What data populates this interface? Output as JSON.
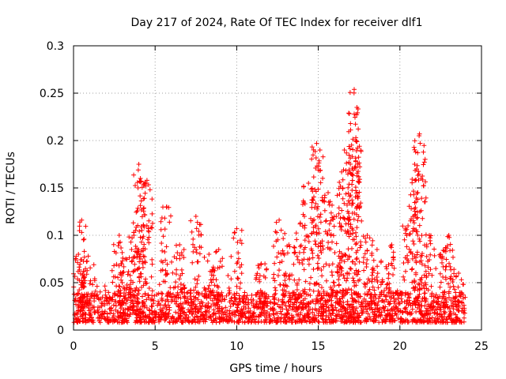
{
  "chart_data": {
    "type": "scatter",
    "title": "Day 217 of 2024, Rate Of TEC Index for receiver dlf1",
    "xlabel": "GPS time / hours",
    "ylabel": "ROTI / TECUs",
    "xlim": [
      0,
      25
    ],
    "ylim": [
      0,
      0.3
    ],
    "xticks": [
      0,
      5,
      10,
      15,
      20,
      25
    ],
    "yticks": [
      0,
      0.05,
      0.1,
      0.15,
      0.2,
      0.25,
      0.3
    ],
    "xtick_labels": [
      "0",
      "5",
      "10",
      "15",
      "20",
      "25"
    ],
    "ytick_labels": [
      "0",
      "0.05",
      "0.1",
      "0.15",
      "0.2",
      "0.25",
      "0.3"
    ],
    "grid": true,
    "marker": "+",
    "color": "#ff0000",
    "x_range_of_data": [
      0,
      24
    ],
    "baseline_band": [
      0.008,
      0.04
    ],
    "peaks": [
      {
        "x": 0.3,
        "y": 0.08
      },
      {
        "x": 0.5,
        "y": 0.116
      },
      {
        "x": 0.9,
        "y": 0.078
      },
      {
        "x": 2.8,
        "y": 0.1
      },
      {
        "x": 3.2,
        "y": 0.075
      },
      {
        "x": 3.7,
        "y": 0.1
      },
      {
        "x": 4.0,
        "y": 0.175
      },
      {
        "x": 4.1,
        "y": 0.16
      },
      {
        "x": 4.5,
        "y": 0.158
      },
      {
        "x": 5.7,
        "y": 0.13
      },
      {
        "x": 6.5,
        "y": 0.09
      },
      {
        "x": 7.5,
        "y": 0.12
      },
      {
        "x": 8.3,
        "y": 0.08
      },
      {
        "x": 8.9,
        "y": 0.085
      },
      {
        "x": 10.0,
        "y": 0.107
      },
      {
        "x": 11.5,
        "y": 0.07
      },
      {
        "x": 12.6,
        "y": 0.116
      },
      {
        "x": 13.2,
        "y": 0.09
      },
      {
        "x": 13.9,
        "y": 0.113
      },
      {
        "x": 14.4,
        "y": 0.155
      },
      {
        "x": 14.9,
        "y": 0.197
      },
      {
        "x": 15.1,
        "y": 0.19
      },
      {
        "x": 15.6,
        "y": 0.145
      },
      {
        "x": 16.1,
        "y": 0.12
      },
      {
        "x": 16.5,
        "y": 0.15
      },
      {
        "x": 16.6,
        "y": 0.19
      },
      {
        "x": 17.2,
        "y": 0.254
      },
      {
        "x": 17.2,
        "y": 0.228
      },
      {
        "x": 17.3,
        "y": 0.203
      },
      {
        "x": 18.0,
        "y": 0.1
      },
      {
        "x": 18.6,
        "y": 0.085
      },
      {
        "x": 19.5,
        "y": 0.09
      },
      {
        "x": 20.5,
        "y": 0.11
      },
      {
        "x": 20.9,
        "y": 0.175
      },
      {
        "x": 21.2,
        "y": 0.207
      },
      {
        "x": 21.3,
        "y": 0.16
      },
      {
        "x": 21.8,
        "y": 0.1
      },
      {
        "x": 22.5,
        "y": 0.08
      },
      {
        "x": 23.0,
        "y": 0.1
      },
      {
        "x": 23.6,
        "y": 0.06
      }
    ]
  }
}
